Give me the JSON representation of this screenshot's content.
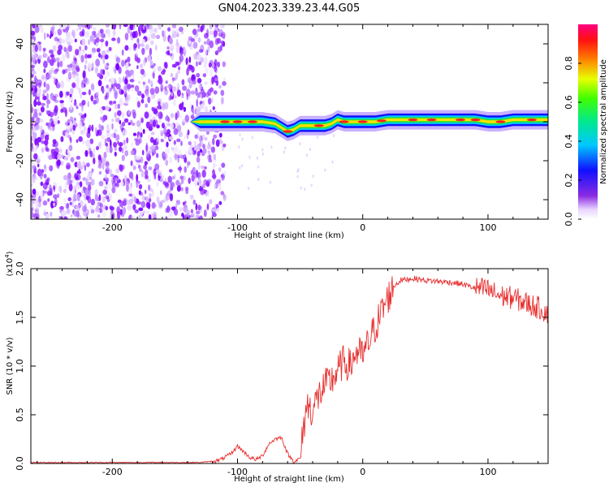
{
  "figure": {
    "title": "GN04.2023.339.23.44.G05"
  },
  "chart_data": [
    {
      "type": "heatmap",
      "title": "GN04.2023.339.23.44.G05",
      "xlabel": "Height of straight line (km)",
      "ylabel": "Frequency (Hz)",
      "xlim": [
        -265,
        148
      ],
      "ylim": [
        -50,
        50
      ],
      "xticks": [
        -200,
        -100,
        0,
        100
      ],
      "xtick_labels": [
        "-200",
        "-100",
        "0",
        "100"
      ],
      "yticks": [
        -40,
        -20,
        0,
        20,
        40
      ],
      "ytick_labels": [
        "-40",
        "-20",
        "0",
        "20",
        "40"
      ],
      "colorbar": {
        "label": "Normalized spectral amplitude",
        "range": [
          0.0,
          1.0
        ],
        "ticks": [
          0.0,
          0.2,
          0.4,
          0.6,
          0.8
        ],
        "tick_labels": [
          "0.0",
          "0.2",
          "0.4",
          "0.6",
          "0.8"
        ],
        "colormap": "rainbow (violet-blue-cyan-green-yellow-red-magenta)"
      },
      "noise_region_x": [
        -265,
        -120
      ],
      "signal_trace": {
        "x": [
          -138,
          -130,
          -120,
          -110,
          -100,
          -90,
          -80,
          -70,
          -65,
          -60,
          -55,
          -50,
          -40,
          -30,
          -25,
          -20,
          -15,
          -10,
          0,
          10,
          20,
          30,
          40,
          50,
          60,
          70,
          80,
          90,
          100,
          110,
          120,
          130,
          140,
          148
        ],
        "y": [
          0,
          0,
          0,
          0,
          0,
          0,
          0,
          -1,
          -3,
          -5,
          -4,
          -2,
          -2,
          -2,
          -1,
          1,
          0,
          0,
          0,
          0,
          1,
          1,
          1,
          1,
          1,
          1,
          1,
          1,
          0,
          0,
          1,
          1,
          1,
          1
        ]
      },
      "grid": false
    },
    {
      "type": "line",
      "xlabel": "Height of straight line (km)",
      "ylabel": "SNR (10 * v/v)",
      "yscale_label": "(x10",
      "yscale_exponent": "4",
      "xlim": [
        -265,
        148
      ],
      "ylim": [
        0,
        2.0
      ],
      "xticks": [
        -200,
        -100,
        0,
        100
      ],
      "xtick_labels": [
        "-200",
        "-100",
        "0",
        "100"
      ],
      "yticks": [
        0,
        0.5,
        1.0,
        1.5,
        2.0
      ],
      "ytick_labels": [
        "0.0",
        "0.5",
        "1.0",
        "1.5",
        "2.0"
      ],
      "series": [
        {
          "color": "#e83030",
          "x": [
            -265,
            -240,
            -200,
            -160,
            -130,
            -115,
            -105,
            -100,
            -95,
            -90,
            -85,
            -80,
            -75,
            -70,
            -65,
            -60,
            -55,
            -50,
            -45,
            -40,
            -35,
            -30,
            -25,
            -20,
            -15,
            -10,
            -5,
            0,
            5,
            10,
            15,
            20,
            25,
            30,
            40,
            50,
            60,
            70,
            80,
            90,
            100,
            110,
            120,
            130,
            140,
            148
          ],
          "y": [
            0.01,
            0.01,
            0.01,
            0.01,
            0.01,
            0.03,
            0.1,
            0.18,
            0.12,
            0.06,
            0.04,
            0.08,
            0.2,
            0.25,
            0.27,
            0.1,
            0.02,
            0.05,
            0.6,
            0.55,
            0.7,
            0.8,
            0.85,
            0.95,
            1.05,
            1.0,
            1.15,
            1.1,
            1.25,
            1.4,
            1.55,
            1.7,
            1.82,
            1.88,
            1.9,
            1.88,
            1.87,
            1.86,
            1.84,
            1.8,
            1.78,
            1.72,
            1.7,
            1.65,
            1.6,
            1.55
          ]
        }
      ],
      "grid": false
    }
  ]
}
